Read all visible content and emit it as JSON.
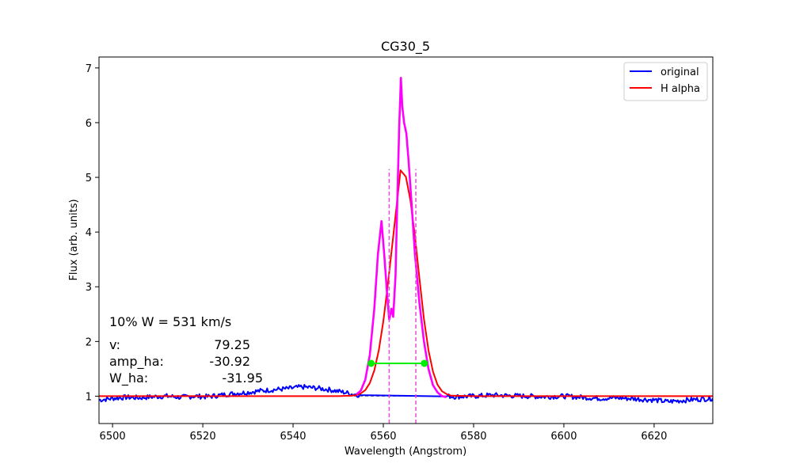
{
  "chart_data": {
    "type": "line",
    "title": "CG30_5",
    "xlabel": "Wavelength (Angstrom)",
    "ylabel": "Flux (arb. units)",
    "xlim": [
      6497,
      6633
    ],
    "ylim": [
      0.5,
      7.2
    ],
    "x_ticks": [
      6500,
      6520,
      6540,
      6560,
      6580,
      6600,
      6620
    ],
    "y_ticks": [
      1,
      2,
      3,
      4,
      5,
      6,
      7
    ],
    "grid": false,
    "legend_position": "top-right",
    "legend": [
      {
        "label": "original",
        "color": "#0000ff"
      },
      {
        "label": "H alpha",
        "color": "#ff0000"
      }
    ],
    "series": [
      {
        "name": "original",
        "color": "#0000ff",
        "x": [
          6497,
          6500,
          6503,
          6506,
          6509,
          6512,
          6515,
          6518,
          6521,
          6524,
          6527,
          6530,
          6533,
          6536,
          6539,
          6542,
          6545,
          6548,
          6550,
          6552,
          6553,
          6554,
          6555,
          6574,
          6575,
          6576,
          6580,
          6584,
          6588,
          6592,
          6596,
          6600,
          6604,
          6608,
          6612,
          6616,
          6620,
          6623,
          6626,
          6629,
          6633
        ],
        "y": [
          0.93,
          0.96,
          0.98,
          0.97,
          0.99,
          1.0,
          0.98,
          1.0,
          0.99,
          1.02,
          1.05,
          1.07,
          1.1,
          1.12,
          1.14,
          1.17,
          1.15,
          1.12,
          1.09,
          1.06,
          1.04,
          1.03,
          1.02,
          1.0,
          1.0,
          0.99,
          1.0,
          1.02,
          1.01,
          1.0,
          0.99,
          1.0,
          0.98,
          0.96,
          0.97,
          0.95,
          0.93,
          0.9,
          0.92,
          0.94,
          0.96
        ]
      },
      {
        "name": "H alpha",
        "color": "#ff0000",
        "x": [
          6497,
          6520,
          6540,
          6550,
          6553,
          6554,
          6555,
          6556,
          6557,
          6558,
          6559,
          6560,
          6561,
          6562,
          6563,
          6563.8,
          6565,
          6566,
          6567,
          6568,
          6569,
          6570,
          6571,
          6572,
          6573,
          6574,
          6575,
          6580,
          6600,
          6633
        ],
        "y": [
          1.0,
          1.0,
          1.0,
          1.0,
          1.01,
          1.02,
          1.05,
          1.11,
          1.24,
          1.47,
          1.84,
          2.37,
          3.04,
          3.78,
          4.52,
          5.13,
          5.01,
          4.58,
          3.93,
          3.15,
          2.41,
          1.84,
          1.45,
          1.21,
          1.09,
          1.04,
          1.01,
          1.0,
          1.0,
          1.0
        ]
      },
      {
        "name": "",
        "color": "#ff00ff",
        "x": [
          6554,
          6555,
          6556,
          6557,
          6558,
          6558.8,
          6559.6,
          6560.2,
          6560.8,
          6561.3,
          6561.8,
          6562.2,
          6562.7,
          6563.1,
          6563.5,
          6563.9,
          6564.2,
          6564.6,
          6565.1,
          6565.6,
          6566.2,
          6567,
          6568,
          6569,
          6570,
          6571,
          6572,
          6573,
          6574
        ],
        "y": [
          1.03,
          1.1,
          1.3,
          1.75,
          2.6,
          3.6,
          4.2,
          3.6,
          2.9,
          2.4,
          2.6,
          2.45,
          3.2,
          4.6,
          5.9,
          6.82,
          6.3,
          6.0,
          5.8,
          5.3,
          4.6,
          3.6,
          2.7,
          2.0,
          1.5,
          1.2,
          1.07,
          1.0,
          0.98
        ]
      }
    ],
    "reference_line": {
      "y": 1.0,
      "color": "#808080",
      "style": "dashed"
    },
    "vertical_markers": {
      "x": [
        6561.3,
        6567.2
      ],
      "ymax": 5.15,
      "color": "#e14ee1",
      "style": "dashed"
    },
    "width_segment": {
      "x": [
        6557.3,
        6569.1
      ],
      "y": 1.6,
      "color": "#00ee00"
    },
    "annotations": {
      "width_text": "10% W = 531 km/s",
      "v_label": "v:",
      "v_value": "79.25",
      "amp_label": "amp_ha:",
      "amp_value": "-30.92",
      "w_label": "W_ha:",
      "w_value": "-31.95"
    }
  }
}
